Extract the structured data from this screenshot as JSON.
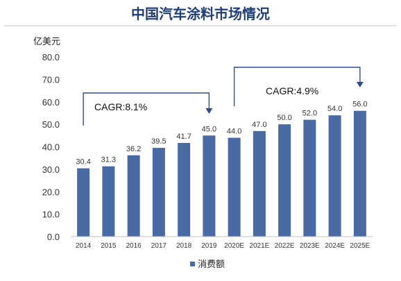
{
  "chart_data": {
    "type": "bar",
    "title": "中国汽车涂料市场情况",
    "ylabel": "亿美元",
    "xlabel": "",
    "categories": [
      "2014",
      "2015",
      "2016",
      "2017",
      "2018",
      "2019",
      "2020E",
      "2021E",
      "2022E",
      "2023E",
      "2024E",
      "2025E"
    ],
    "series": [
      {
        "name": "消费额",
        "values": [
          30.4,
          31.3,
          36.2,
          39.5,
          41.7,
          45.0,
          44.0,
          47.0,
          50.0,
          52.0,
          54.0,
          56.0
        ]
      }
    ],
    "data_labels": [
      "30.4",
      "31.3",
      "36.2",
      "39.5",
      "41.7",
      "45.0",
      "44.0",
      "47.0",
      "50.0",
      "52.0",
      "54.0",
      "56.0"
    ],
    "ylim": [
      0,
      80
    ],
    "yticks": [
      "0.0",
      "10.0",
      "20.0",
      "30.0",
      "40.0",
      "50.0",
      "60.0",
      "70.0",
      "80.0"
    ],
    "grid": false,
    "legend_position": "bottom",
    "annotations": [
      {
        "text": "CAGR:8.1%",
        "from": "2014",
        "to": "2019"
      },
      {
        "text": "CAGR:4.9%",
        "from": "2020E",
        "to": "2025E"
      }
    ],
    "colors": {
      "bar": "#4a6aa5",
      "title": "#1f3e78",
      "accent": "#2b4d8a"
    }
  }
}
